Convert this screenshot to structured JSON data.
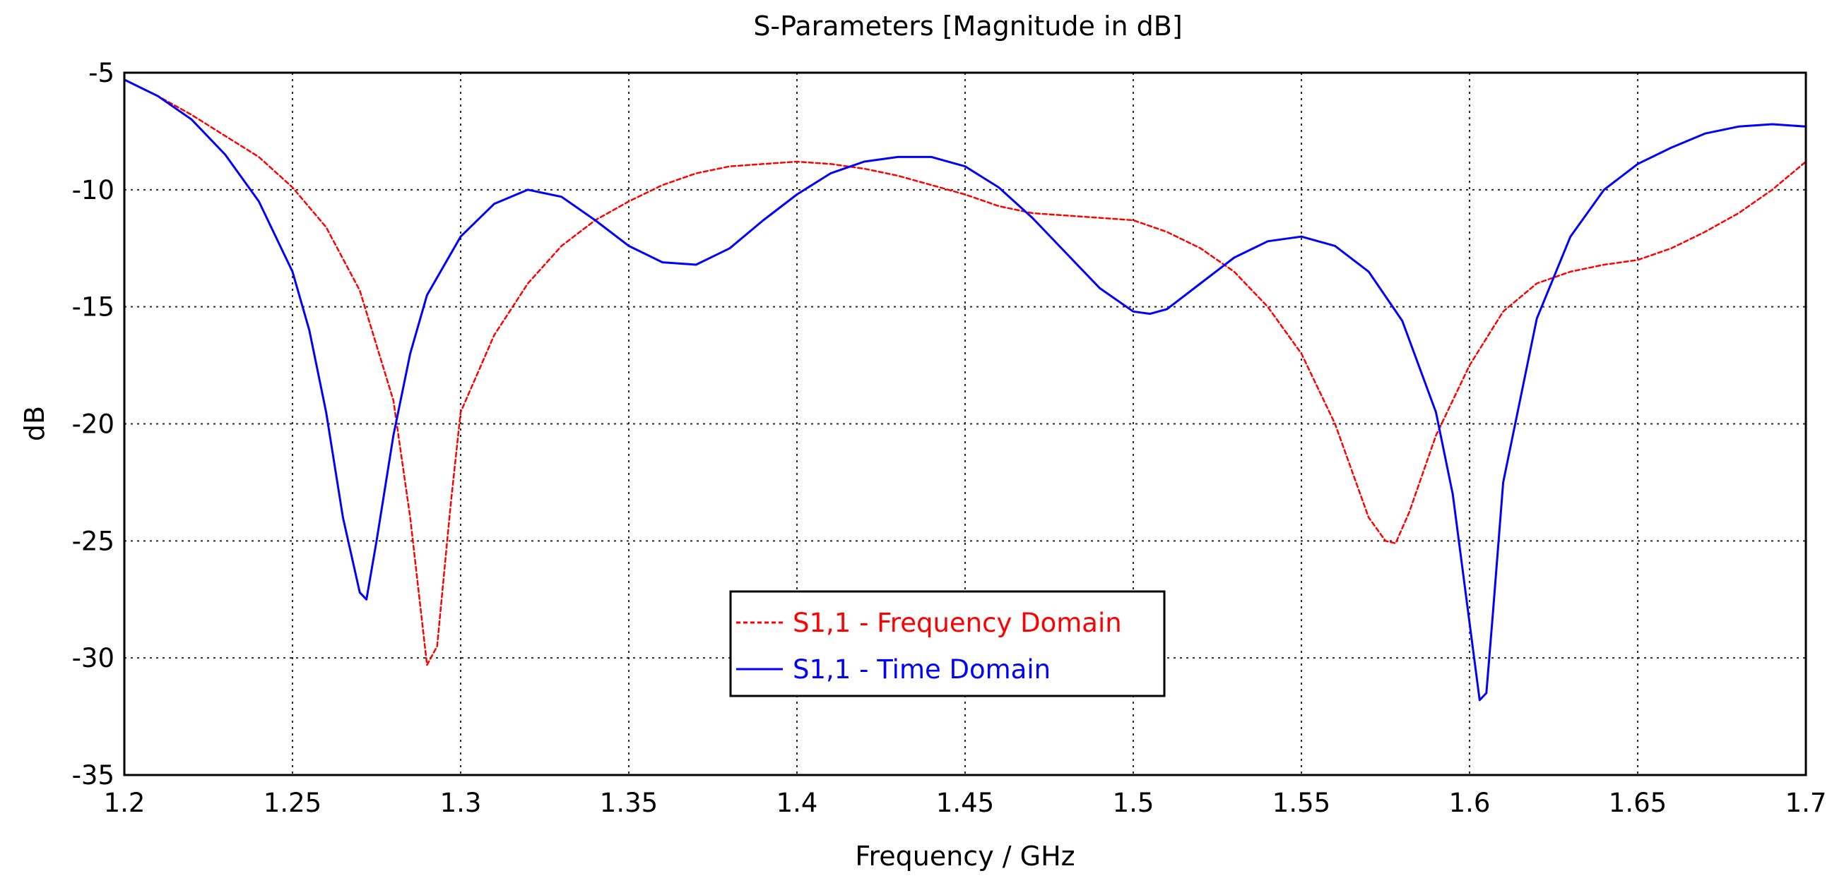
{
  "chart_data": {
    "type": "line",
    "title": "S-Parameters [Magnitude in dB]",
    "xlabel": "Frequency / GHz",
    "ylabel": "dB",
    "xlim": [
      1.2,
      1.7
    ],
    "ylim": [
      -35,
      -5
    ],
    "xticks": [
      1.2,
      1.25,
      1.3,
      1.35,
      1.4,
      1.45,
      1.5,
      1.55,
      1.6,
      1.65,
      1.7
    ],
    "xtick_labels": [
      "1.2",
      "1.25",
      "1.3",
      "1.35",
      "1.4",
      "1.45",
      "1.5",
      "1.55",
      "1.6",
      "1.65",
      "1.7"
    ],
    "yticks": [
      -5,
      -10,
      -15,
      -20,
      -25,
      -30,
      -35
    ],
    "ytick_labels": [
      "-5",
      "-10",
      "-15",
      "-20",
      "-25",
      "-30",
      "-35"
    ],
    "grid": true,
    "legend_position": "center-bottom",
    "series": [
      {
        "name": "S1,1 - Frequency Domain",
        "color": "#ff0000",
        "dash": true,
        "x": [
          1.2,
          1.21,
          1.22,
          1.23,
          1.24,
          1.25,
          1.26,
          1.27,
          1.28,
          1.285,
          1.29,
          1.293,
          1.297,
          1.3,
          1.31,
          1.32,
          1.33,
          1.34,
          1.35,
          1.36,
          1.37,
          1.38,
          1.39,
          1.4,
          1.41,
          1.42,
          1.43,
          1.44,
          1.45,
          1.46,
          1.47,
          1.48,
          1.49,
          1.5,
          1.51,
          1.52,
          1.53,
          1.54,
          1.55,
          1.56,
          1.57,
          1.575,
          1.578,
          1.582,
          1.59,
          1.6,
          1.61,
          1.62,
          1.63,
          1.64,
          1.65,
          1.66,
          1.67,
          1.68,
          1.69,
          1.7
        ],
        "y": [
          -5.3,
          -6.0,
          -6.8,
          -7.7,
          -8.6,
          -9.9,
          -11.6,
          -14.3,
          -19.0,
          -24.0,
          -30.3,
          -29.5,
          -23.5,
          -19.5,
          -16.2,
          -14.0,
          -12.4,
          -11.3,
          -10.5,
          -9.8,
          -9.3,
          -9.0,
          -8.9,
          -8.8,
          -8.9,
          -9.1,
          -9.4,
          -9.8,
          -10.2,
          -10.7,
          -11.0,
          -11.1,
          -11.2,
          -11.3,
          -11.8,
          -12.5,
          -13.5,
          -15.0,
          -17.0,
          -20.0,
          -24.0,
          -25.0,
          -25.1,
          -23.8,
          -20.5,
          -17.5,
          -15.2,
          -14.0,
          -13.5,
          -13.2,
          -13.0,
          -12.5,
          -11.8,
          -11.0,
          -10.0,
          -8.8
        ]
      },
      {
        "name": "S1,1 - Time Domain",
        "color": "#0000ff",
        "dash": false,
        "x": [
          1.2,
          1.21,
          1.22,
          1.23,
          1.24,
          1.25,
          1.255,
          1.26,
          1.265,
          1.27,
          1.272,
          1.275,
          1.28,
          1.285,
          1.29,
          1.3,
          1.31,
          1.32,
          1.33,
          1.34,
          1.35,
          1.36,
          1.37,
          1.38,
          1.39,
          1.4,
          1.41,
          1.42,
          1.43,
          1.44,
          1.45,
          1.46,
          1.47,
          1.48,
          1.49,
          1.5,
          1.505,
          1.51,
          1.52,
          1.53,
          1.54,
          1.55,
          1.56,
          1.57,
          1.58,
          1.59,
          1.595,
          1.6,
          1.603,
          1.605,
          1.607,
          1.61,
          1.62,
          1.63,
          1.64,
          1.65,
          1.66,
          1.67,
          1.68,
          1.69,
          1.7
        ],
        "y": [
          -5.3,
          -6.0,
          -7.0,
          -8.5,
          -10.5,
          -13.5,
          -16.0,
          -19.5,
          -24.0,
          -27.2,
          -27.5,
          -25.0,
          -20.5,
          -17.0,
          -14.5,
          -12.0,
          -10.6,
          -10.0,
          -10.3,
          -11.3,
          -12.4,
          -13.1,
          -13.2,
          -12.5,
          -11.3,
          -10.2,
          -9.3,
          -8.8,
          -8.6,
          -8.6,
          -9.0,
          -9.9,
          -11.2,
          -12.7,
          -14.2,
          -15.2,
          -15.3,
          -15.1,
          -14.0,
          -12.9,
          -12.2,
          -12.0,
          -12.4,
          -13.5,
          -15.6,
          -19.5,
          -23.0,
          -28.5,
          -31.8,
          -31.5,
          -28.0,
          -22.5,
          -15.5,
          -12.0,
          -10.0,
          -8.9,
          -8.2,
          -7.6,
          -7.3,
          -7.2,
          -7.3
        ]
      }
    ]
  }
}
